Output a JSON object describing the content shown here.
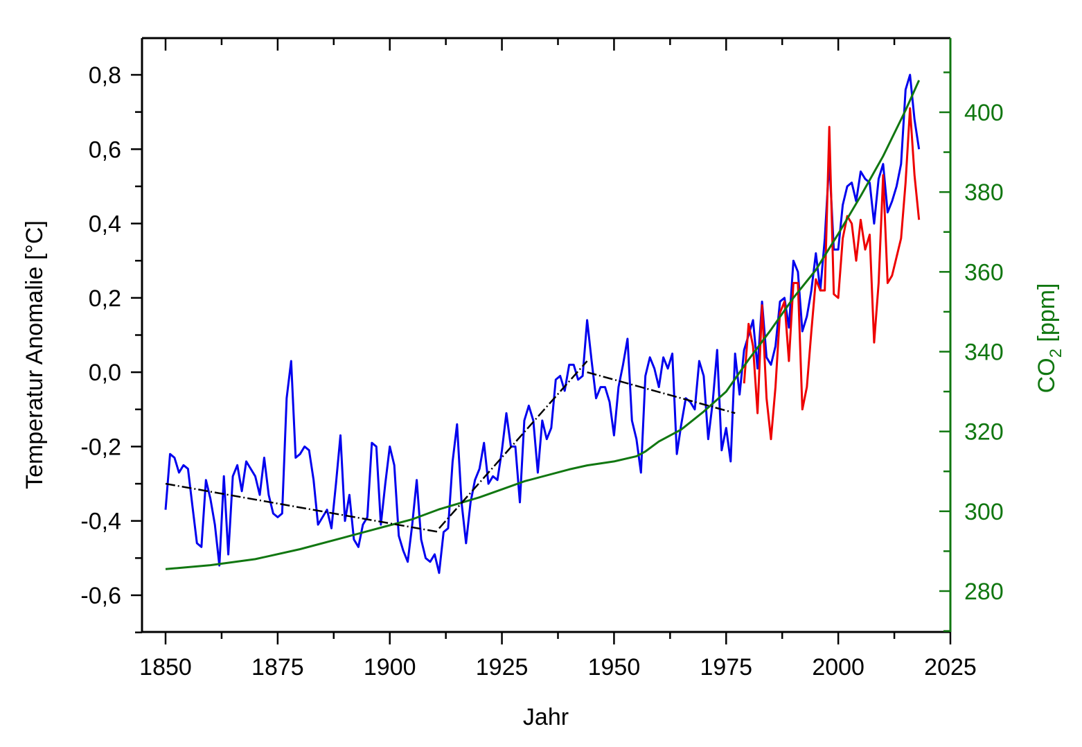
{
  "colors": {
    "temp_blue": "#0000ee",
    "temp_red": "#ee0000",
    "co2_green": "#117711",
    "trend_black": "#000000",
    "axis_black": "#000000",
    "axis_green": "#117711"
  },
  "chart_data": {
    "type": "line",
    "title": "",
    "xlabel": "Jahr",
    "ylabel": "Temperatur Anomalie [°C]",
    "y2label_main": "CO",
    "y2label_sub": "2",
    "y2label_unit": " [ppm]",
    "xlim": [
      1845,
      2025
    ],
    "ylim": [
      -0.7,
      0.9
    ],
    "y2lim": [
      269,
      418
    ],
    "grid": false,
    "legend": "none",
    "x_ticks": [
      1850,
      1875,
      1900,
      1925,
      1950,
      1975,
      2000,
      2025
    ],
    "x_tick_labels": [
      "1850",
      "1875",
      "1900",
      "1925",
      "1950",
      "1975",
      "2000",
      "2025"
    ],
    "y_ticks": [
      -0.6,
      -0.4,
      -0.2,
      0.0,
      0.2,
      0.4,
      0.6,
      0.8
    ],
    "y_tick_labels": [
      "-0,6",
      "-0,4",
      "-0,2",
      "0,0",
      "0,2",
      "0,4",
      "0,6",
      "0,8"
    ],
    "y2_ticks": [
      280,
      300,
      320,
      340,
      360,
      380,
      400
    ],
    "y2_tick_labels": [
      "280",
      "300",
      "320",
      "340",
      "360",
      "380",
      "400"
    ],
    "series": [
      {
        "name": "temperature-anomaly-surface",
        "axis": "left",
        "color_key": "temp_blue",
        "x_start": 1850,
        "values": [
          -0.37,
          -0.22,
          -0.23,
          -0.27,
          -0.25,
          -0.26,
          -0.36,
          -0.46,
          -0.47,
          -0.29,
          -0.34,
          -0.41,
          -0.52,
          -0.28,
          -0.49,
          -0.28,
          -0.25,
          -0.32,
          -0.24,
          -0.26,
          -0.28,
          -0.33,
          -0.23,
          -0.33,
          -0.38,
          -0.39,
          -0.38,
          -0.07,
          0.03,
          -0.23,
          -0.22,
          -0.2,
          -0.21,
          -0.29,
          -0.41,
          -0.39,
          -0.37,
          -0.42,
          -0.3,
          -0.17,
          -0.4,
          -0.33,
          -0.45,
          -0.47,
          -0.41,
          -0.39,
          -0.19,
          -0.2,
          -0.41,
          -0.3,
          -0.2,
          -0.25,
          -0.44,
          -0.48,
          -0.51,
          -0.41,
          -0.29,
          -0.45,
          -0.5,
          -0.51,
          -0.49,
          -0.54,
          -0.43,
          -0.42,
          -0.24,
          -0.14,
          -0.35,
          -0.46,
          -0.35,
          -0.29,
          -0.26,
          -0.19,
          -0.3,
          -0.28,
          -0.29,
          -0.21,
          -0.11,
          -0.2,
          -0.2,
          -0.35,
          -0.13,
          -0.09,
          -0.13,
          -0.27,
          -0.13,
          -0.18,
          -0.15,
          -0.02,
          -0.01,
          -0.05,
          0.02,
          0.02,
          -0.02,
          -0.01,
          0.14,
          0.03,
          -0.07,
          -0.04,
          -0.04,
          -0.08,
          -0.17,
          -0.04,
          0.02,
          0.09,
          -0.13,
          -0.18,
          -0.27,
          -0.01,
          0.04,
          0.01,
          -0.04,
          0.04,
          0.01,
          0.05,
          -0.22,
          -0.14,
          -0.07,
          -0.08,
          -0.1,
          0.03,
          -0.01,
          -0.18,
          -0.08,
          0.06,
          -0.21,
          -0.15,
          -0.24,
          0.05,
          -0.06,
          0.06,
          0.1,
          0.14,
          0.01,
          0.19,
          0.04,
          0.02,
          0.07,
          0.19,
          0.2,
          0.12,
          0.3,
          0.27,
          0.11,
          0.15,
          0.22,
          0.32,
          0.22,
          0.36,
          0.57,
          0.33,
          0.33,
          0.45,
          0.5,
          0.51,
          0.46,
          0.54,
          0.52,
          0.51,
          0.4,
          0.52,
          0.56,
          0.43,
          0.46,
          0.5,
          0.56,
          0.76,
          0.8,
          0.68,
          0.6
        ]
      },
      {
        "name": "temperature-anomaly-satellite",
        "axis": "left",
        "color_key": "temp_red",
        "x_start": 1979,
        "values": [
          -0.03,
          0.13,
          0.07,
          -0.11,
          0.18,
          -0.07,
          -0.18,
          -0.04,
          0.16,
          0.19,
          0.03,
          0.24,
          0.24,
          -0.1,
          -0.04,
          0.11,
          0.25,
          0.22,
          0.22,
          0.66,
          0.21,
          0.2,
          0.36,
          0.42,
          0.4,
          0.3,
          0.41,
          0.33,
          0.37,
          0.08,
          0.24,
          0.53,
          0.24,
          0.26,
          0.31,
          0.36,
          0.51,
          0.71,
          0.53,
          0.41
        ]
      },
      {
        "name": "co2-concentration",
        "axis": "right",
        "color_key": "co2_green",
        "x": [
          1850,
          1860,
          1870,
          1880,
          1890,
          1900,
          1905,
          1911,
          1920,
          1925,
          1930,
          1940,
          1944,
          1950,
          1955,
          1957,
          1960,
          1965,
          1970,
          1975,
          1980,
          1985,
          1990,
          1995,
          2000,
          2005,
          2010,
          2015,
          2018
        ],
        "values": [
          285.5,
          286.5,
          288.0,
          290.5,
          293.5,
          296.5,
          298.0,
          300.5,
          303.5,
          305.5,
          307.5,
          310.5,
          311.5,
          312.5,
          313.8,
          315.0,
          317.5,
          320.5,
          325.0,
          330.0,
          338.0,
          345.5,
          353.5,
          360.5,
          369.5,
          379.0,
          389.0,
          400.5,
          408.0
        ]
      }
    ],
    "trend_lines": [
      {
        "name": "trend-1850-1911",
        "x": [
          1850,
          1911
        ],
        "y": [
          -0.3,
          -0.43
        ]
      },
      {
        "name": "trend-1911-1944",
        "x": [
          1911,
          1944
        ],
        "y": [
          -0.42,
          0.03
        ]
      },
      {
        "name": "trend-1944-1977",
        "x": [
          1944,
          1977
        ],
        "y": [
          0.0,
          -0.11
        ]
      }
    ]
  }
}
